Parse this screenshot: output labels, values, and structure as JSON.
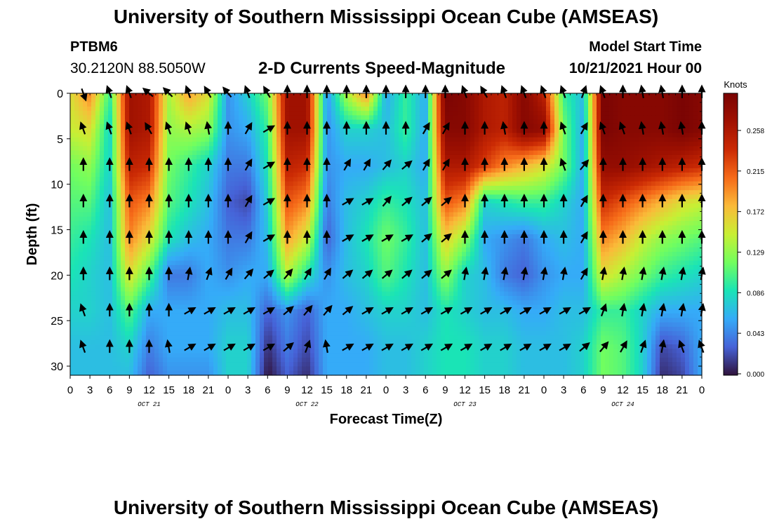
{
  "header": {
    "title": "University of Southern Mississippi Ocean Cube (AMSEAS)",
    "station_id": "PTBM6",
    "station_coords": "30.2120N  88.5050W",
    "subtitle": "2-D Currents Speed-Magnitude",
    "model_start_label": "Model Start Time",
    "model_start_value": "10/21/2021 Hour 00"
  },
  "footer": {
    "title": "University of Southern Mississippi Ocean Cube (AMSEAS)"
  },
  "chart_data": {
    "type": "heatmap",
    "title": "2-D Currents Speed-Magnitude",
    "xlabel": "Forecast Time(Z)",
    "ylabel": "Depth (ft)",
    "x_ticks": [
      "0",
      "3",
      "6",
      "9",
      "12",
      "15",
      "18",
      "21",
      "0",
      "3",
      "6",
      "9",
      "12",
      "15",
      "18",
      "21",
      "0",
      "3",
      "6",
      "9",
      "12",
      "15",
      "18",
      "21",
      "0",
      "3",
      "6",
      "9",
      "12",
      "15",
      "18",
      "21",
      "0"
    ],
    "date_labels": [
      {
        "text": "OCT 21",
        "hour": 12
      },
      {
        "text": "OCT 22",
        "hour": 36
      },
      {
        "text": "OCT 23",
        "hour": 60
      },
      {
        "text": "OCT 24",
        "hour": 84
      }
    ],
    "xlim": [
      0,
      96
    ],
    "ylim": [
      0,
      31
    ],
    "y_ticks": [
      0,
      5,
      10,
      15,
      20,
      25,
      30
    ],
    "colorbar": {
      "label": "Knots",
      "range": [
        0,
        0.3
      ],
      "ticks": [
        "0.258",
        "0.215",
        "0.172",
        "0.129",
        "0.086",
        "0.043",
        "0.000"
      ]
    },
    "arrow_hours": [
      2,
      6,
      9,
      12,
      15,
      18,
      21,
      24,
      27,
      30,
      33,
      36,
      39,
      42,
      45,
      48,
      51,
      54,
      57,
      60,
      63,
      66,
      69,
      72,
      75,
      78,
      81,
      84,
      87,
      90,
      93,
      96
    ],
    "arrow_depths": [
      0,
      4,
      8,
      12,
      16,
      20,
      24,
      28
    ],
    "speed_grid": {
      "x_hours": [
        0,
        3,
        6,
        9,
        12,
        15,
        18,
        21,
        24,
        27,
        30,
        33,
        36,
        39,
        42,
        45,
        48,
        51,
        54,
        57,
        60,
        63,
        66,
        69,
        72,
        75,
        78,
        81,
        84,
        87,
        90,
        93,
        96
      ],
      "y_depths": [
        0,
        4,
        8,
        12,
        16,
        20,
        24,
        28,
        31
      ],
      "values": [
        [
          0.16,
          0.2,
          0.1,
          0.27,
          0.26,
          0.14,
          0.19,
          0.16,
          0.05,
          0.08,
          0.12,
          0.27,
          0.27,
          0.05,
          0.14,
          0.2,
          0.06,
          0.1,
          0.06,
          0.3,
          0.29,
          0.26,
          0.25,
          0.29,
          0.25,
          0.1,
          0.07,
          0.3,
          0.29,
          0.29,
          0.29,
          0.3,
          0.29
        ],
        [
          0.15,
          0.16,
          0.08,
          0.27,
          0.26,
          0.13,
          0.14,
          0.13,
          0.05,
          0.06,
          0.1,
          0.27,
          0.27,
          0.05,
          0.08,
          0.08,
          0.07,
          0.1,
          0.06,
          0.29,
          0.29,
          0.26,
          0.25,
          0.29,
          0.28,
          0.12,
          0.06,
          0.3,
          0.29,
          0.29,
          0.29,
          0.3,
          0.29
        ],
        [
          0.12,
          0.13,
          0.08,
          0.25,
          0.24,
          0.12,
          0.1,
          0.08,
          0.04,
          0.04,
          0.09,
          0.25,
          0.24,
          0.05,
          0.06,
          0.06,
          0.07,
          0.08,
          0.06,
          0.26,
          0.26,
          0.23,
          0.2,
          0.18,
          0.16,
          0.12,
          0.06,
          0.28,
          0.28,
          0.27,
          0.26,
          0.25,
          0.24
        ],
        [
          0.11,
          0.11,
          0.07,
          0.22,
          0.2,
          0.11,
          0.09,
          0.07,
          0.03,
          0.02,
          0.08,
          0.22,
          0.2,
          0.04,
          0.07,
          0.08,
          0.1,
          0.09,
          0.07,
          0.22,
          0.2,
          0.08,
          0.09,
          0.1,
          0.1,
          0.08,
          0.06,
          0.24,
          0.22,
          0.2,
          0.18,
          0.16,
          0.15
        ],
        [
          0.1,
          0.09,
          0.07,
          0.2,
          0.16,
          0.09,
          0.07,
          0.06,
          0.04,
          0.04,
          0.07,
          0.19,
          0.15,
          0.03,
          0.07,
          0.09,
          0.12,
          0.1,
          0.07,
          0.17,
          0.13,
          0.06,
          0.05,
          0.04,
          0.06,
          0.07,
          0.06,
          0.2,
          0.18,
          0.15,
          0.13,
          0.12,
          0.11
        ],
        [
          0.09,
          0.08,
          0.07,
          0.16,
          0.11,
          0.04,
          0.04,
          0.06,
          0.05,
          0.06,
          0.06,
          0.14,
          0.09,
          0.05,
          0.07,
          0.08,
          0.11,
          0.09,
          0.07,
          0.13,
          0.08,
          0.07,
          0.04,
          0.03,
          0.05,
          0.06,
          0.06,
          0.16,
          0.14,
          0.12,
          0.1,
          0.09,
          0.08
        ],
        [
          0.08,
          0.08,
          0.07,
          0.11,
          0.06,
          0.06,
          0.06,
          0.06,
          0.07,
          0.07,
          0.03,
          0.05,
          0.03,
          0.06,
          0.06,
          0.07,
          0.08,
          0.08,
          0.07,
          0.09,
          0.08,
          0.07,
          0.07,
          0.06,
          0.06,
          0.07,
          0.07,
          0.1,
          0.1,
          0.08,
          0.06,
          0.06,
          0.06
        ],
        [
          0.07,
          0.07,
          0.07,
          0.08,
          0.04,
          0.06,
          0.06,
          0.06,
          0.08,
          0.08,
          0.01,
          0.04,
          0.02,
          0.06,
          0.06,
          0.06,
          0.07,
          0.07,
          0.08,
          0.09,
          0.09,
          0.08,
          0.08,
          0.07,
          0.07,
          0.07,
          0.08,
          0.12,
          0.11,
          0.08,
          0.02,
          0.03,
          0.06
        ],
        [
          0.07,
          0.07,
          0.07,
          0.07,
          0.03,
          0.05,
          0.05,
          0.05,
          0.08,
          0.08,
          0.0,
          0.03,
          0.01,
          0.06,
          0.06,
          0.06,
          0.07,
          0.07,
          0.08,
          0.09,
          0.09,
          0.08,
          0.08,
          0.07,
          0.07,
          0.07,
          0.08,
          0.12,
          0.11,
          0.08,
          0.01,
          0.02,
          0.06
        ]
      ]
    },
    "arrow_dirs_deg": [
      [
        20,
        200,
        200,
        230,
        225,
        200,
        210,
        220,
        200,
        210,
        180,
        180,
        180,
        180,
        180,
        180,
        180,
        180,
        180,
        200,
        210,
        200,
        200,
        200,
        200,
        160,
        200,
        180,
        190,
        190,
        180,
        180,
        190
      ],
      [
        200,
        200,
        200,
        210,
        200,
        200,
        190,
        180,
        150,
        120,
        180,
        180,
        180,
        180,
        180,
        180,
        180,
        150,
        150,
        180,
        180,
        190,
        180,
        180,
        200,
        150,
        200,
        200,
        190,
        190,
        190,
        180,
        170
      ],
      [
        180,
        180,
        180,
        180,
        180,
        180,
        180,
        180,
        150,
        120,
        180,
        180,
        180,
        150,
        150,
        140,
        130,
        150,
        150,
        180,
        180,
        180,
        180,
        180,
        200,
        140,
        180,
        180,
        180,
        180,
        180,
        180,
        170
      ],
      [
        180,
        180,
        180,
        180,
        180,
        180,
        180,
        180,
        150,
        120,
        180,
        180,
        180,
        120,
        120,
        140,
        130,
        130,
        130,
        180,
        180,
        180,
        180,
        180,
        180,
        150,
        180,
        180,
        180,
        180,
        180,
        180,
        170
      ],
      [
        180,
        180,
        180,
        180,
        180,
        180,
        180,
        180,
        150,
        120,
        180,
        180,
        180,
        120,
        120,
        120,
        120,
        130,
        130,
        180,
        180,
        180,
        180,
        180,
        180,
        150,
        180,
        180,
        180,
        180,
        180,
        180,
        170
      ],
      [
        180,
        180,
        180,
        180,
        180,
        170,
        160,
        150,
        140,
        130,
        140,
        150,
        150,
        130,
        130,
        130,
        130,
        130,
        130,
        170,
        170,
        170,
        170,
        170,
        170,
        150,
        170,
        170,
        170,
        170,
        170,
        170,
        170
      ],
      [
        200,
        180,
        180,
        180,
        180,
        120,
        120,
        120,
        120,
        120,
        130,
        140,
        140,
        130,
        120,
        120,
        120,
        120,
        120,
        120,
        120,
        120,
        120,
        120,
        120,
        120,
        160,
        170,
        170,
        170,
        170,
        170,
        170
      ],
      [
        200,
        180,
        180,
        180,
        190,
        120,
        120,
        120,
        120,
        120,
        130,
        160,
        190,
        120,
        120,
        120,
        120,
        120,
        120,
        120,
        120,
        120,
        120,
        120,
        120,
        130,
        140,
        150,
        160,
        170,
        200,
        200,
        180
      ]
    ]
  }
}
